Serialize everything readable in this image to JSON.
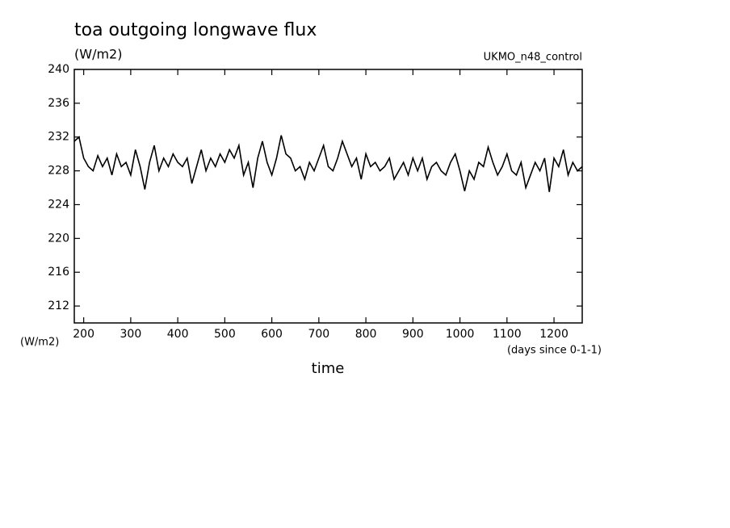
{
  "chart_data": {
    "type": "line",
    "title": "toa outgoing longwave flux",
    "subtitle": "UKMO_n48_control",
    "y_label": "(W/m2)",
    "x_label": "time",
    "x_unit": "(days since 0-1-1)",
    "color": "#000000",
    "x": [
      180,
      190,
      200,
      210,
      220,
      230,
      240,
      250,
      260,
      270,
      280,
      290,
      300,
      310,
      320,
      330,
      340,
      350,
      360,
      370,
      380,
      390,
      400,
      410,
      420,
      430,
      440,
      450,
      460,
      470,
      480,
      490,
      500,
      510,
      520,
      530,
      540,
      550,
      560,
      570,
      580,
      590,
      600,
      610,
      620,
      630,
      640,
      650,
      660,
      670,
      680,
      690,
      700,
      710,
      720,
      730,
      740,
      750,
      760,
      770,
      780,
      790,
      800,
      810,
      820,
      830,
      840,
      850,
      860,
      870,
      880,
      890,
      900,
      910,
      920,
      930,
      940,
      950,
      960,
      970,
      980,
      990,
      1000,
      1010,
      1020,
      1030,
      1040,
      1050,
      1060,
      1070,
      1080,
      1090,
      1100,
      1110,
      1120,
      1130,
      1140,
      1150,
      1160,
      1170,
      1180,
      1190,
      1200,
      1210,
      1220,
      1230,
      1240,
      1250,
      1260
    ],
    "values": [
      231.5,
      232,
      229.5,
      228.5,
      228,
      229.8,
      228.5,
      229.5,
      227.5,
      230,
      228.5,
      229,
      227.5,
      230.5,
      228.5,
      225.8,
      229,
      231,
      228,
      229.5,
      228.5,
      230,
      229,
      228.5,
      229.5,
      226.5,
      228.5,
      230.5,
      228,
      229.5,
      228.5,
      230,
      229,
      230.5,
      229.5,
      231,
      227.5,
      229,
      226,
      229.5,
      231.5,
      229,
      227.5,
      229.5,
      232.2,
      230,
      229.5,
      228,
      228.5,
      227,
      229,
      228,
      229.5,
      231,
      228.5,
      228,
      229.5,
      231.5,
      230,
      228.5,
      229.5,
      227,
      230,
      228.5,
      229,
      228,
      228.5,
      229.5,
      227,
      228,
      229,
      227.5,
      229.5,
      228,
      229.5,
      227,
      228.5,
      229,
      228,
      227.5,
      229,
      230,
      228,
      225.6,
      228,
      227,
      229,
      228.5,
      230.8,
      229,
      227.5,
      228.5,
      230,
      228,
      227.5,
      229,
      226,
      227.5,
      229,
      228,
      229.5,
      225.5,
      229.5,
      228.5,
      230.5,
      227.5,
      229,
      228,
      228.5
    ],
    "xlim": [
      180,
      1260
    ],
    "ylim": [
      210,
      240
    ],
    "xticks": [
      200,
      300,
      400,
      500,
      600,
      700,
      800,
      900,
      1000,
      1100,
      1200
    ],
    "yticks": [
      212,
      216,
      220,
      224,
      228,
      232,
      236,
      240
    ]
  }
}
